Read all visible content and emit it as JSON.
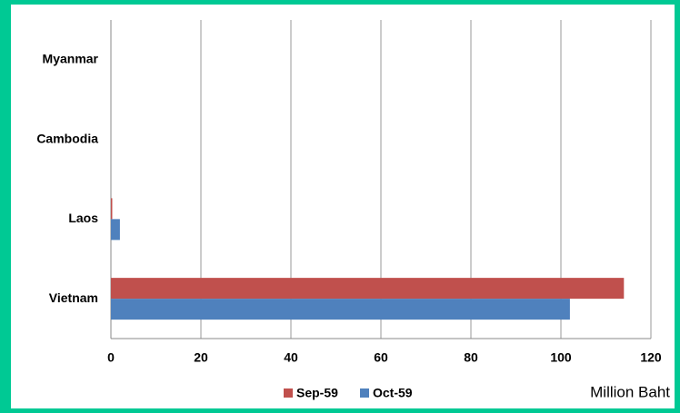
{
  "chart_data": {
    "type": "hbar",
    "categories": [
      "Myanmar",
      "Cambodia",
      "Laos",
      "Vietnam"
    ],
    "series": [
      {
        "name": "Sep-59",
        "color": "#c0504d",
        "values": [
          0,
          0,
          0.3,
          114
        ]
      },
      {
        "name": "Oct-59",
        "color": "#4f81bd",
        "values": [
          0,
          0,
          2,
          102
        ]
      }
    ],
    "xlabel": "Million Baht",
    "xlim": [
      0,
      120
    ],
    "xticks": [
      0,
      20,
      40,
      60,
      80,
      100,
      120
    ],
    "grid": true,
    "legend": "bottom"
  }
}
